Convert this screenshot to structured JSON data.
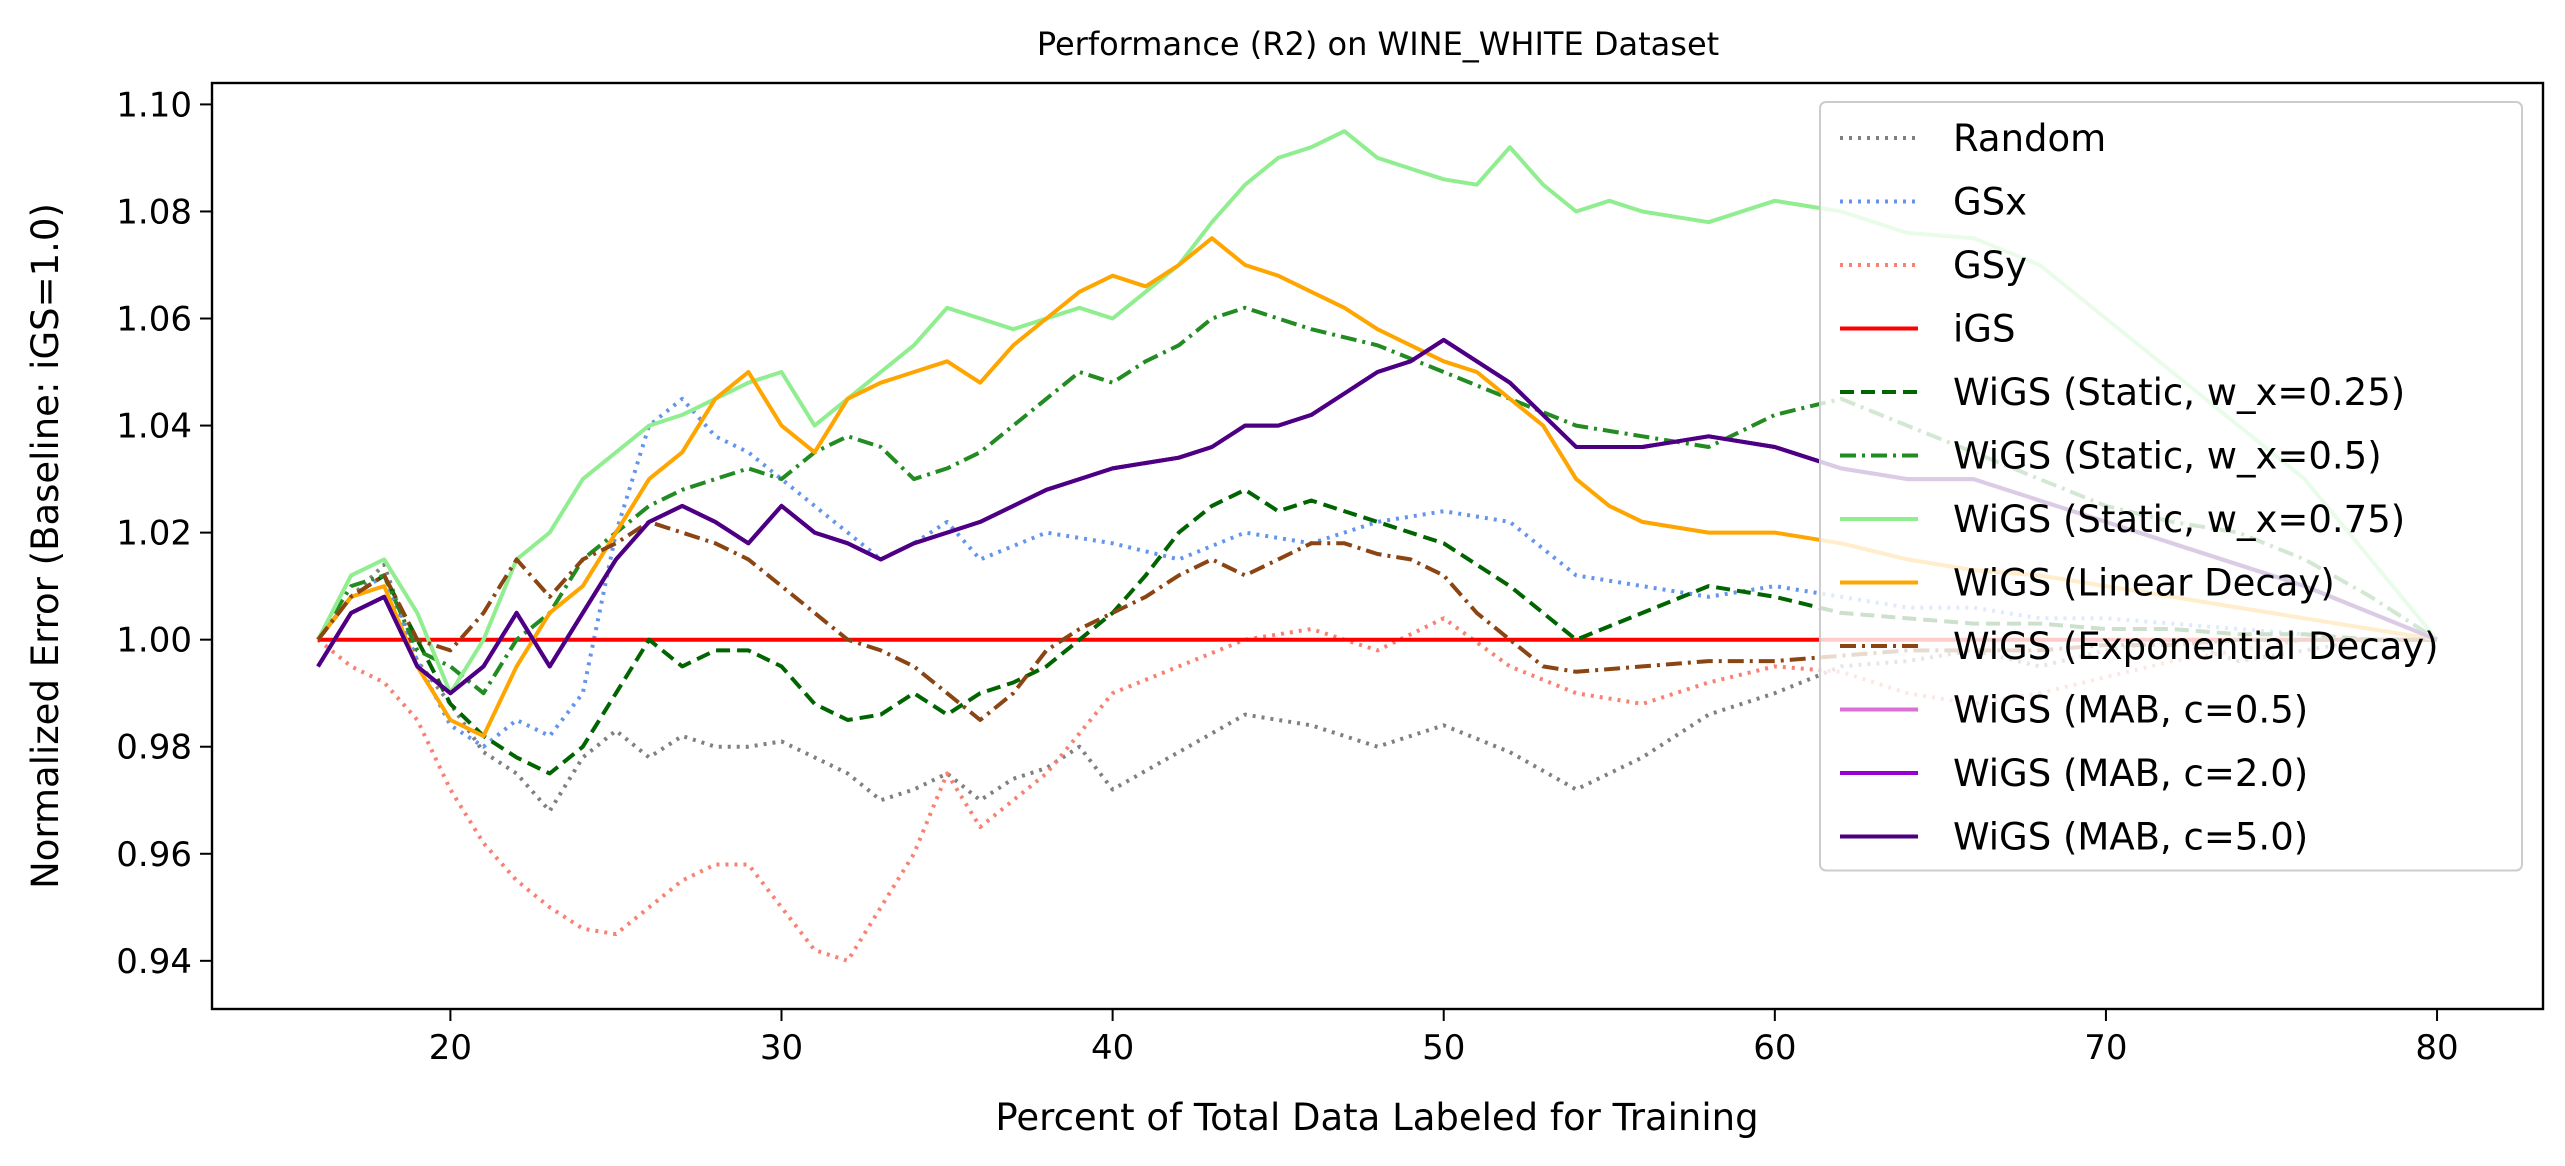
{
  "chart_data": {
    "type": "line",
    "title": "Performance (R2) on WINE_WHITE Dataset",
    "xlabel": "Percent of Total Data Labeled for Training",
    "ylabel": "Normalized Error (Baseline: iGS=1.0)",
    "xlim": [
      12.8,
      83.2
    ],
    "ylim": [
      0.931,
      1.104
    ],
    "xticks": [
      20,
      30,
      40,
      50,
      60,
      70,
      80
    ],
    "yticks": [
      0.94,
      0.96,
      0.98,
      1.0,
      1.02,
      1.04,
      1.06,
      1.08,
      1.1
    ],
    "xtick_labels": [
      "20",
      "30",
      "40",
      "50",
      "60",
      "70",
      "80"
    ],
    "ytick_labels": [
      "0.94",
      "0.96",
      "0.98",
      "1.00",
      "1.02",
      "1.04",
      "1.06",
      "1.08",
      "1.10"
    ],
    "grid": false,
    "legend_position": "upper right",
    "series": [
      {
        "name": "Random",
        "color": "#808080",
        "dash": "dotted",
        "x": [
          16,
          17,
          18,
          19,
          20,
          21,
          22,
          23,
          24,
          25,
          26,
          27,
          28,
          29,
          30,
          31,
          32,
          33,
          34,
          35,
          36,
          37,
          38,
          39,
          40,
          42,
          44,
          46,
          48,
          50,
          52,
          54,
          56,
          58,
          60,
          62,
          64,
          66,
          68,
          70,
          72,
          74,
          76,
          78,
          80
        ],
        "y": [
          1.0,
          1.008,
          1.014,
          0.996,
          0.988,
          0.979,
          0.975,
          0.968,
          0.978,
          0.983,
          0.978,
          0.982,
          0.98,
          0.98,
          0.981,
          0.978,
          0.975,
          0.97,
          0.972,
          0.975,
          0.97,
          0.974,
          0.976,
          0.98,
          0.972,
          0.979,
          0.986,
          0.984,
          0.98,
          0.984,
          0.979,
          0.972,
          0.978,
          0.986,
          0.99,
          0.995,
          0.996,
          0.998,
          0.995,
          0.998,
          1.0,
          0.996,
          0.998,
          1.0,
          1.0
        ]
      },
      {
        "name": "GSx",
        "color": "#6495ed",
        "dash": "dotted",
        "x": [
          16,
          17,
          18,
          19,
          20,
          21,
          22,
          23,
          24,
          25,
          26,
          27,
          28,
          29,
          30,
          31,
          32,
          33,
          34,
          35,
          36,
          38,
          40,
          42,
          44,
          46,
          48,
          50,
          52,
          54,
          56,
          58,
          60,
          62,
          64,
          66,
          68,
          70,
          72,
          74,
          76,
          78,
          80
        ],
        "y": [
          1.0,
          1.008,
          1.012,
          0.996,
          0.984,
          0.98,
          0.985,
          0.982,
          0.99,
          1.02,
          1.04,
          1.045,
          1.038,
          1.035,
          1.03,
          1.025,
          1.02,
          1.015,
          1.018,
          1.022,
          1.015,
          1.02,
          1.018,
          1.015,
          1.02,
          1.018,
          1.022,
          1.024,
          1.022,
          1.012,
          1.01,
          1.008,
          1.01,
          1.008,
          1.006,
          1.006,
          1.004,
          1.004,
          1.003,
          1.002,
          1.001,
          1.0,
          1.0
        ]
      },
      {
        "name": "GSy",
        "color": "#fa8072",
        "dash": "dotted",
        "x": [
          16,
          17,
          18,
          19,
          20,
          21,
          22,
          23,
          24,
          25,
          26,
          27,
          28,
          29,
          30,
          31,
          32,
          33,
          34,
          35,
          36,
          38,
          40,
          42,
          44,
          46,
          48,
          50,
          52,
          54,
          56,
          58,
          60,
          62,
          64,
          66,
          68,
          70,
          72,
          74,
          76,
          78,
          80
        ],
        "y": [
          1.0,
          0.995,
          0.992,
          0.985,
          0.972,
          0.962,
          0.955,
          0.95,
          0.946,
          0.945,
          0.95,
          0.955,
          0.958,
          0.958,
          0.95,
          0.942,
          0.94,
          0.95,
          0.96,
          0.975,
          0.965,
          0.975,
          0.99,
          0.995,
          1.0,
          1.002,
          0.998,
          1.004,
          0.995,
          0.99,
          0.988,
          0.992,
          0.995,
          0.994,
          0.99,
          0.988,
          0.99,
          0.993,
          0.996,
          0.998,
          1.0,
          1.0,
          1.0
        ]
      },
      {
        "name": "iGS",
        "color": "#ff0000",
        "dash": "solid",
        "x": [
          16,
          80
        ],
        "y": [
          1.0,
          1.0
        ]
      },
      {
        "name": "WiGS (Static, w_x=0.25)",
        "color": "#006400",
        "dash": "dashed",
        "x": [
          16,
          17,
          18,
          19,
          20,
          21,
          22,
          23,
          24,
          25,
          26,
          27,
          28,
          29,
          30,
          31,
          32,
          33,
          34,
          35,
          36,
          37,
          38,
          39,
          40,
          41,
          42,
          43,
          44,
          45,
          46,
          48,
          50,
          52,
          54,
          56,
          58,
          60,
          62,
          64,
          66,
          68,
          70,
          72,
          74,
          76,
          78,
          80
        ],
        "y": [
          1.0,
          1.008,
          1.012,
          1.0,
          0.988,
          0.982,
          0.978,
          0.975,
          0.98,
          0.99,
          1.0,
          0.995,
          0.998,
          0.998,
          0.995,
          0.988,
          0.985,
          0.986,
          0.99,
          0.986,
          0.99,
          0.992,
          0.995,
          1.0,
          1.005,
          1.012,
          1.02,
          1.025,
          1.028,
          1.024,
          1.026,
          1.022,
          1.018,
          1.01,
          1.0,
          1.005,
          1.01,
          1.008,
          1.005,
          1.004,
          1.003,
          1.003,
          1.002,
          1.002,
          1.001,
          1.001,
          1.0,
          1.0
        ]
      },
      {
        "name": "WiGS (Static, w_x=0.5)",
        "color": "#228b22",
        "dash": "dashdot",
        "x": [
          16,
          17,
          18,
          19,
          20,
          21,
          22,
          23,
          24,
          25,
          26,
          27,
          28,
          29,
          30,
          31,
          32,
          33,
          34,
          35,
          36,
          37,
          38,
          39,
          40,
          41,
          42,
          43,
          44,
          45,
          46,
          48,
          50,
          52,
          54,
          56,
          58,
          60,
          62,
          64,
          66,
          68,
          70,
          72,
          74,
          76,
          78,
          80
        ],
        "y": [
          1.0,
          1.01,
          1.012,
          0.998,
          0.995,
          0.99,
          1.0,
          1.005,
          1.015,
          1.02,
          1.025,
          1.028,
          1.03,
          1.032,
          1.03,
          1.035,
          1.038,
          1.036,
          1.03,
          1.032,
          1.035,
          1.04,
          1.045,
          1.05,
          1.048,
          1.052,
          1.055,
          1.06,
          1.062,
          1.06,
          1.058,
          1.055,
          1.05,
          1.045,
          1.04,
          1.038,
          1.036,
          1.042,
          1.045,
          1.04,
          1.035,
          1.03,
          1.025,
          1.022,
          1.02,
          1.015,
          1.008,
          1.0
        ]
      },
      {
        "name": "WiGS (Static, w_x=0.75)",
        "color": "#90ee90",
        "dash": "solid",
        "x": [
          16,
          17,
          18,
          19,
          20,
          21,
          22,
          23,
          24,
          25,
          26,
          27,
          28,
          29,
          30,
          31,
          32,
          33,
          34,
          35,
          36,
          37,
          38,
          39,
          40,
          41,
          42,
          43,
          44,
          45,
          46,
          47,
          48,
          49,
          50,
          51,
          52,
          53,
          54,
          55,
          56,
          58,
          60,
          62,
          64,
          66,
          68,
          70,
          72,
          74,
          76,
          78,
          80
        ],
        "y": [
          1.0,
          1.012,
          1.015,
          1.005,
          0.99,
          1.0,
          1.015,
          1.02,
          1.03,
          1.035,
          1.04,
          1.042,
          1.045,
          1.048,
          1.05,
          1.04,
          1.045,
          1.05,
          1.055,
          1.062,
          1.06,
          1.058,
          1.06,
          1.062,
          1.06,
          1.065,
          1.07,
          1.078,
          1.085,
          1.09,
          1.092,
          1.095,
          1.09,
          1.088,
          1.086,
          1.085,
          1.092,
          1.085,
          1.08,
          1.082,
          1.08,
          1.078,
          1.082,
          1.08,
          1.076,
          1.075,
          1.07,
          1.06,
          1.05,
          1.04,
          1.03,
          1.015,
          1.0
        ]
      },
      {
        "name": "WiGS (Linear Decay)",
        "color": "#ffa500",
        "dash": "solid",
        "x": [
          16,
          17,
          18,
          19,
          20,
          21,
          22,
          23,
          24,
          25,
          26,
          27,
          28,
          29,
          30,
          31,
          32,
          33,
          34,
          35,
          36,
          37,
          38,
          39,
          40,
          41,
          42,
          43,
          44,
          45,
          46,
          47,
          48,
          49,
          50,
          51,
          52,
          53,
          54,
          55,
          56,
          58,
          60,
          62,
          64,
          66,
          68,
          70,
          72,
          74,
          76,
          78,
          80
        ],
        "y": [
          1.0,
          1.008,
          1.01,
          0.995,
          0.985,
          0.982,
          0.995,
          1.005,
          1.01,
          1.02,
          1.03,
          1.035,
          1.045,
          1.05,
          1.04,
          1.035,
          1.045,
          1.048,
          1.05,
          1.052,
          1.048,
          1.055,
          1.06,
          1.065,
          1.068,
          1.066,
          1.07,
          1.075,
          1.07,
          1.068,
          1.065,
          1.062,
          1.058,
          1.055,
          1.052,
          1.05,
          1.045,
          1.04,
          1.03,
          1.025,
          1.022,
          1.02,
          1.02,
          1.018,
          1.015,
          1.013,
          1.012,
          1.01,
          1.008,
          1.006,
          1.004,
          1.002,
          1.0
        ]
      },
      {
        "name": "WiGS (Exponential Decay)",
        "color": "#8b4513",
        "dash": "dashdot",
        "x": [
          16,
          17,
          18,
          19,
          20,
          21,
          22,
          23,
          24,
          25,
          26,
          27,
          28,
          29,
          30,
          31,
          32,
          33,
          34,
          35,
          36,
          37,
          38,
          39,
          40,
          41,
          42,
          43,
          44,
          45,
          46,
          47,
          48,
          49,
          50,
          51,
          52,
          53,
          54,
          56,
          58,
          60,
          62,
          64,
          66,
          68,
          70,
          72,
          74,
          76,
          78,
          80
        ],
        "y": [
          1.0,
          1.008,
          1.012,
          1.0,
          0.998,
          1.005,
          1.015,
          1.008,
          1.015,
          1.018,
          1.022,
          1.02,
          1.018,
          1.015,
          1.01,
          1.005,
          1.0,
          0.998,
          0.995,
          0.99,
          0.985,
          0.99,
          0.998,
          1.002,
          1.005,
          1.008,
          1.012,
          1.015,
          1.012,
          1.015,
          1.018,
          1.018,
          1.016,
          1.015,
          1.012,
          1.005,
          1.0,
          0.995,
          0.994,
          0.995,
          0.996,
          0.996,
          0.997,
          0.998,
          0.998,
          0.998,
          0.999,
          0.999,
          1.0,
          1.0,
          1.0,
          1.0
        ]
      },
      {
        "name": "WiGS (MAB, c=0.5)",
        "color": "#da70d6",
        "dash": "solid",
        "x": [
          16,
          17,
          18,
          19,
          20,
          21,
          22,
          23,
          24,
          25,
          26,
          27,
          28,
          29,
          30,
          31,
          32,
          33,
          34,
          35,
          36,
          37,
          38,
          39,
          40,
          41,
          42,
          43,
          44,
          45,
          46,
          47,
          48,
          49,
          50,
          51,
          52,
          53,
          54,
          56,
          58,
          60,
          62,
          64,
          66,
          68,
          70,
          72,
          74,
          76,
          78,
          80
        ],
        "y": [
          0.995,
          1.005,
          1.008,
          0.995,
          0.99,
          0.995,
          1.005,
          0.995,
          1.005,
          1.015,
          1.022,
          1.025,
          1.022,
          1.018,
          1.025,
          1.02,
          1.018,
          1.015,
          1.018,
          1.02,
          1.022,
          1.025,
          1.028,
          1.03,
          1.032,
          1.033,
          1.034,
          1.036,
          1.04,
          1.04,
          1.042,
          1.046,
          1.05,
          1.052,
          1.056,
          1.052,
          1.048,
          1.042,
          1.036,
          1.036,
          1.038,
          1.036,
          1.032,
          1.03,
          1.03,
          1.026,
          1.022,
          1.018,
          1.014,
          1.01,
          1.005,
          1.0
        ]
      },
      {
        "name": "WiGS (MAB, c=2.0)",
        "color": "#9400d3",
        "dash": "solid",
        "x": [
          16,
          17,
          18,
          19,
          20,
          21,
          22,
          23,
          24,
          25,
          26,
          27,
          28,
          29,
          30,
          31,
          32,
          33,
          34,
          35,
          36,
          37,
          38,
          39,
          40,
          41,
          42,
          43,
          44,
          45,
          46,
          47,
          48,
          49,
          50,
          51,
          52,
          53,
          54,
          56,
          58,
          60,
          62,
          64,
          66,
          68,
          70,
          72,
          74,
          76,
          78,
          80
        ],
        "y": [
          0.995,
          1.005,
          1.008,
          0.995,
          0.99,
          0.995,
          1.005,
          0.995,
          1.005,
          1.015,
          1.022,
          1.025,
          1.022,
          1.018,
          1.025,
          1.02,
          1.018,
          1.015,
          1.018,
          1.02,
          1.022,
          1.025,
          1.028,
          1.03,
          1.032,
          1.033,
          1.034,
          1.036,
          1.04,
          1.04,
          1.042,
          1.046,
          1.05,
          1.052,
          1.056,
          1.052,
          1.048,
          1.042,
          1.036,
          1.036,
          1.038,
          1.036,
          1.032,
          1.03,
          1.03,
          1.026,
          1.022,
          1.018,
          1.014,
          1.01,
          1.005,
          1.0
        ]
      },
      {
        "name": "WiGS (MAB, c=5.0)",
        "color": "#4b0082",
        "dash": "solid",
        "x": [
          16,
          17,
          18,
          19,
          20,
          21,
          22,
          23,
          24,
          25,
          26,
          27,
          28,
          29,
          30,
          31,
          32,
          33,
          34,
          35,
          36,
          37,
          38,
          39,
          40,
          41,
          42,
          43,
          44,
          45,
          46,
          47,
          48,
          49,
          50,
          51,
          52,
          53,
          54,
          56,
          58,
          60,
          62,
          64,
          66,
          68,
          70,
          72,
          74,
          76,
          78,
          80
        ],
        "y": [
          0.995,
          1.005,
          1.008,
          0.995,
          0.99,
          0.995,
          1.005,
          0.995,
          1.005,
          1.015,
          1.022,
          1.025,
          1.022,
          1.018,
          1.025,
          1.02,
          1.018,
          1.015,
          1.018,
          1.02,
          1.022,
          1.025,
          1.028,
          1.03,
          1.032,
          1.033,
          1.034,
          1.036,
          1.04,
          1.04,
          1.042,
          1.046,
          1.05,
          1.052,
          1.056,
          1.052,
          1.048,
          1.042,
          1.036,
          1.036,
          1.038,
          1.036,
          1.032,
          1.03,
          1.03,
          1.026,
          1.022,
          1.018,
          1.014,
          1.01,
          1.005,
          1.0
        ]
      }
    ]
  }
}
